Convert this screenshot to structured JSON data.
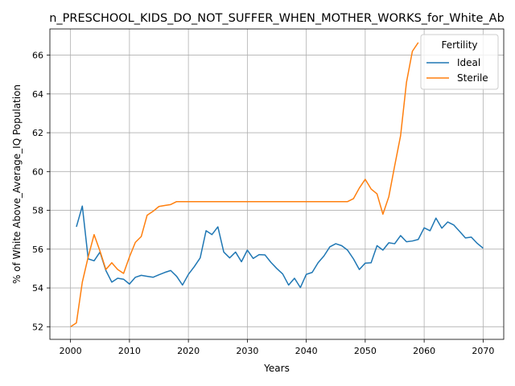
{
  "chart_data": {
    "type": "line",
    "title": "n_PRESCHOOL_KIDS_DO_NOT_SUFFER_WHEN_MOTHER_WORKS_for_White_Ab",
    "xlabel": "Years",
    "ylabel": "% of White Above_Average_IQ Population",
    "xlim": [
      1996.5,
      2073.5
    ],
    "ylim": [
      51.35,
      67.35
    ],
    "grid": true,
    "legend_placement": "top-right",
    "legend_title": "Fertility",
    "xticks": [
      2000,
      2010,
      2020,
      2030,
      2040,
      2050,
      2060,
      2070
    ],
    "yticks": [
      52,
      54,
      56,
      58,
      60,
      62,
      64,
      66
    ],
    "series": [
      {
        "name": "Ideal",
        "color": "#1f77b4",
        "x": [
          2001,
          2002,
          2003,
          2004,
          2005,
          2006,
          2007,
          2008,
          2009,
          2010,
          2011,
          2012,
          2013,
          2014,
          2015,
          2016,
          2017,
          2018,
          2019,
          2020,
          2021,
          2022,
          2023,
          2024,
          2025,
          2026,
          2027,
          2028,
          2029,
          2030,
          2031,
          2032,
          2033,
          2034,
          2035,
          2036,
          2037,
          2038,
          2039,
          2040,
          2041,
          2042,
          2043,
          2044,
          2045,
          2046,
          2047,
          2048,
          2049,
          2050,
          2051,
          2052,
          2053,
          2054,
          2055,
          2056,
          2057,
          2058,
          2059,
          2060,
          2061,
          2062,
          2063,
          2064,
          2065,
          2066,
          2067,
          2068,
          2069,
          2070
        ],
        "y": [
          57.15,
          58.22,
          55.5,
          55.4,
          55.85,
          54.9,
          54.3,
          54.5,
          54.45,
          54.2,
          54.55,
          54.65,
          54.6,
          54.55,
          54.68,
          54.8,
          54.9,
          54.6,
          54.15,
          54.7,
          55.1,
          55.55,
          56.95,
          56.75,
          57.15,
          55.85,
          55.55,
          55.85,
          55.35,
          55.95,
          55.52,
          55.72,
          55.7,
          55.32,
          55.0,
          54.72,
          54.15,
          54.5,
          54.02,
          54.7,
          54.8,
          55.3,
          55.65,
          56.12,
          56.28,
          56.18,
          55.95,
          55.5,
          54.95,
          55.28,
          55.3,
          56.18,
          55.95,
          56.33,
          56.28,
          56.7,
          56.38,
          56.42,
          56.5,
          57.1,
          56.95,
          57.6,
          57.08,
          57.4,
          57.25,
          56.92,
          56.58,
          56.62,
          56.3,
          56.05
        ]
      },
      {
        "name": "Sterile",
        "color": "#ff7f0e",
        "x": [
          2000,
          2001,
          2002,
          2003,
          2004,
          2005,
          2006,
          2007,
          2008,
          2009,
          2010,
          2011,
          2012,
          2013,
          2014,
          2015,
          2016,
          2017,
          2018,
          2019,
          2020,
          2021,
          2022,
          2023,
          2024,
          2025,
          2026,
          2027,
          2028,
          2029,
          2030,
          2031,
          2032,
          2033,
          2034,
          2035,
          2036,
          2037,
          2038,
          2039,
          2040,
          2041,
          2042,
          2043,
          2044,
          2045,
          2046,
          2047,
          2048,
          2049,
          2050,
          2051,
          2052,
          2053,
          2054,
          2055,
          2056,
          2057,
          2058,
          2059
        ],
        "y": [
          52.0,
          52.2,
          54.3,
          55.6,
          56.75,
          55.9,
          54.95,
          55.3,
          54.95,
          54.75,
          55.6,
          56.35,
          56.65,
          57.75,
          57.95,
          58.2,
          58.25,
          58.3,
          58.45,
          58.45,
          58.45,
          58.45,
          58.45,
          58.45,
          58.45,
          58.45,
          58.45,
          58.45,
          58.45,
          58.45,
          58.45,
          58.45,
          58.45,
          58.45,
          58.45,
          58.45,
          58.45,
          58.45,
          58.45,
          58.45,
          58.45,
          58.45,
          58.45,
          58.45,
          58.45,
          58.45,
          58.45,
          58.45,
          58.6,
          59.15,
          59.6,
          59.1,
          58.85,
          57.8,
          58.7,
          60.3,
          61.85,
          64.6,
          66.2,
          66.65
        ]
      }
    ]
  }
}
